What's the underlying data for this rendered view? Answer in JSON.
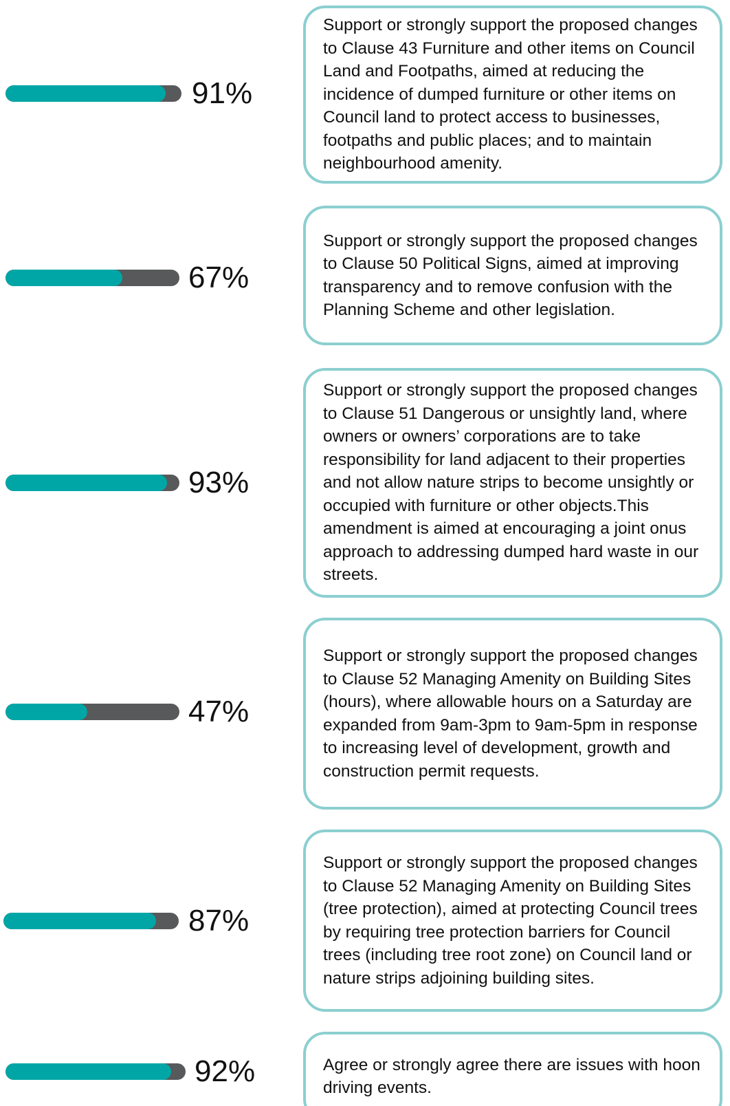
{
  "chart_data": {
    "type": "progress",
    "categories": [
      "Support or strongly support the proposed changes to Clause 43 Furniture and other items on Council Land and Footpaths, aimed at reducing the incidence of dumped furniture or other items on Council land to protect access to businesses, footpaths and public places; and to maintain neighbourhood amenity.",
      "Support or strongly support the proposed changes to Clause 50 Political Signs, aimed at improving transparency and to remove confusion with the Planning Scheme and other legislation.",
      "Support or strongly support the proposed changes to Clause 51 Dangerous or unsightly land, where owners or owners’ corporations are to take responsibility for land adjacent to their properties and not allow nature strips to become unsightly or occupied with furniture or other objects.This amendment is aimed at encouraging a joint onus approach to addressing dumped hard waste in our streets.",
      "Support or strongly support the proposed changes to Clause 52 Managing Amenity on Building Sites (hours), where allowable hours on a Saturday are expanded from 9am-3pm to 9am-5pm in response to increasing level of development, growth and construction permit requests.",
      "Support or strongly support the proposed changes to Clause 52 Managing Amenity on Building Sites (tree protection), aimed at protecting Council trees by requiring tree protection barriers for Council trees (including tree root zone) on Council land or nature strips adjoining building sites.",
      "Agree or strongly agree there are issues with hoon driving events."
    ],
    "values": [
      91,
      67,
      93,
      47,
      87,
      92
    ],
    "value_labels": [
      "91%",
      "67%",
      "93%",
      "47%",
      "87%",
      "92%"
    ],
    "xlim": [
      0,
      100
    ],
    "color": "#00a6a6",
    "track_color": "#58595b"
  }
}
